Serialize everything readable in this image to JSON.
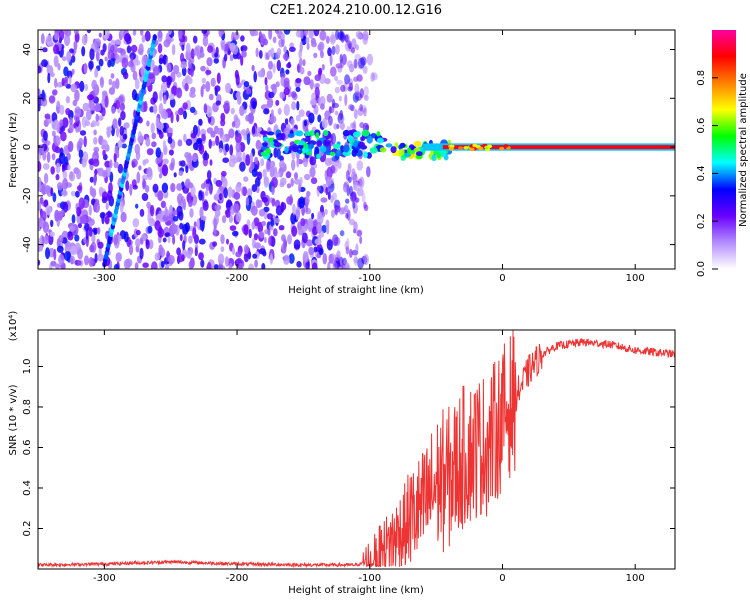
{
  "title": "C2E1.2024.210.00.12.G16",
  "chart_data": [
    {
      "type": "heatmap",
      "xlabel": "Height of straight line (km)",
      "ylabel": "Frequency (Hz)",
      "xlim": [
        -350,
        130
      ],
      "ylim": [
        -50,
        48
      ],
      "xticks": [
        -300,
        -200,
        -100,
        0,
        100
      ],
      "yticks": [
        -40,
        -20,
        0,
        20,
        40
      ],
      "colorbar": {
        "label": "Normalized spectral amplitude",
        "range": [
          0,
          1
        ],
        "ticks": [
          0.0,
          0.2,
          0.4,
          0.6,
          0.8
        ],
        "colors": [
          "#ffffff",
          "#b48cff",
          "#6a00ff",
          "#0000ff",
          "#00ffff",
          "#00ff00",
          "#ffff00",
          "#ff8000",
          "#ff0000",
          "#ff00a0"
        ]
      },
      "features": {
        "noise_region_x": [
          -350,
          -100
        ],
        "diagonal_streak": {
          "x": [
            -300,
            -262
          ],
          "y": [
            -48,
            45
          ],
          "amplitude": 0.3
        },
        "dc_line": {
          "x": [
            -180,
            130
          ],
          "y": 0,
          "amplitude": 0.9
        },
        "dc_line_bright_from_x": -45,
        "dc_band_halfwidth_hz": 1.5
      }
    },
    {
      "type": "line",
      "xlabel": "Height of straight line (km)",
      "ylabel": "SNR (10 * v/v)",
      "multiplier": "(x10⁴)",
      "xlim": [
        -350,
        130
      ],
      "ylim": [
        0,
        1.18
      ],
      "xticks": [
        -300,
        -200,
        -100,
        0,
        100
      ],
      "yticks": [
        0.2,
        0.4,
        0.6,
        0.8,
        1.0
      ],
      "color": "#ee3333",
      "series": [
        {
          "name": "",
          "x": [
            -350,
            -300,
            -250,
            -200,
            -150,
            -110,
            -95,
            -80,
            -70,
            -60,
            -50,
            -40,
            -30,
            -20,
            -10,
            0,
            10,
            20,
            30,
            40,
            60,
            80,
            100,
            130
          ],
          "y": [
            0.02,
            0.025,
            0.035,
            0.025,
            0.02,
            0.02,
            0.05,
            0.15,
            0.25,
            0.3,
            0.42,
            0.45,
            0.55,
            0.6,
            0.62,
            0.75,
            0.85,
            0.98,
            1.06,
            1.1,
            1.12,
            1.11,
            1.08,
            1.06
          ]
        }
      ]
    }
  ]
}
